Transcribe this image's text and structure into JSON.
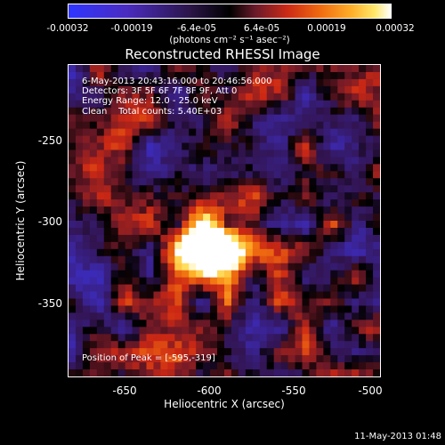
{
  "chart_data": {
    "type": "heatmap",
    "title": "Reconstructed RHESSI Image",
    "xlabel": "Heliocentric X (arcsec)",
    "ylabel": "Heliocentric Y (arcsec)",
    "xlim": [
      -680,
      -495
    ],
    "ylim": [
      -395,
      -210
    ],
    "x_ticks": [
      "-650",
      "-600",
      "-550",
      "-500"
    ],
    "y_ticks": [
      "-250",
      "-300",
      "-350"
    ],
    "colorbar": {
      "ticks": [
        "-0.00032",
        "-0.00019",
        "-6.4e-05",
        "6.4e-05",
        "0.00019",
        "0.00032"
      ],
      "unit_label": "(photons cm⁻² s⁻¹ asec⁻²)",
      "range": [
        -0.00032,
        0.00032
      ]
    },
    "annotations": {
      "time_range": "6-May-2013 20:43:16.000 to 20:46:56.000",
      "detectors": "Detectors: 3F 5F 6F 7F 8F 9F, Att 0",
      "energy": "Energy Range: 12.0 - 25.0 keV",
      "clean": "Clean    Total counts: 5.40E+03",
      "peak": "Position of Peak = [-595,-319]"
    },
    "peak": [
      -595,
      -319
    ]
  },
  "timestamp": "11-May-2013 01:48"
}
